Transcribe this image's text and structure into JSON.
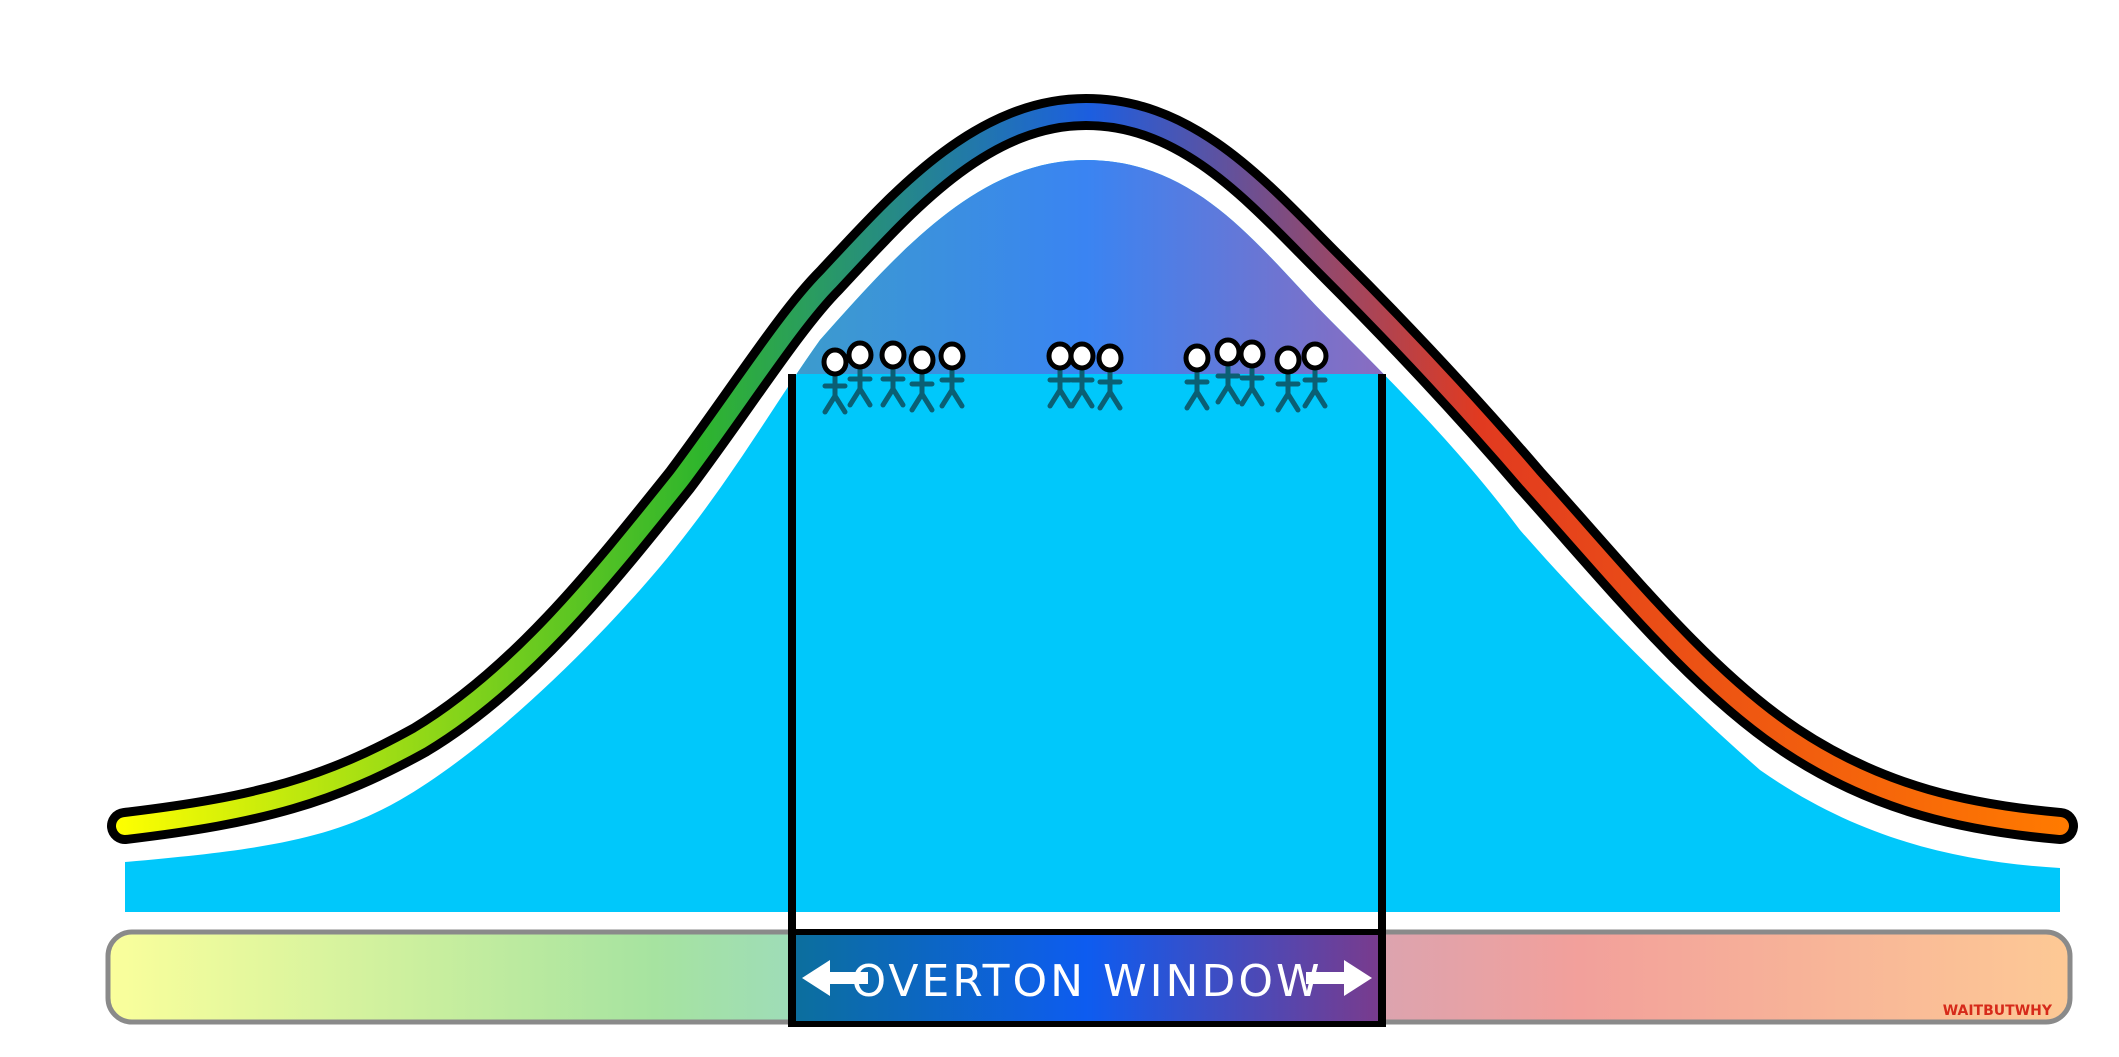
{
  "diagram": {
    "window_label": "OVERTON WINDOW",
    "watermark": "WAITBUTWHY",
    "colors": {
      "background": "#ffffff",
      "population_fill": "#00c8fb",
      "window_top_fill": "#3d86ee",
      "curve_outline": "#000000",
      "curve_left": "#ffff00",
      "curve_left_mid": "#2fb52c",
      "curve_peak": "#1c5ee0",
      "curve_right_mid": "#e13a20",
      "curve_right": "#ff7a00",
      "bar_left": "#fbff9c",
      "bar_right": "#fdc995",
      "window_bar_left": "#0c6f9c",
      "window_bar_mid": "#0d5cf0",
      "window_bar_right": "#7a3b8c",
      "watermark": "#d62a1a"
    },
    "icons": [
      "stick-figure-icon",
      "arrow-left-icon",
      "arrow-right-icon"
    ]
  }
}
